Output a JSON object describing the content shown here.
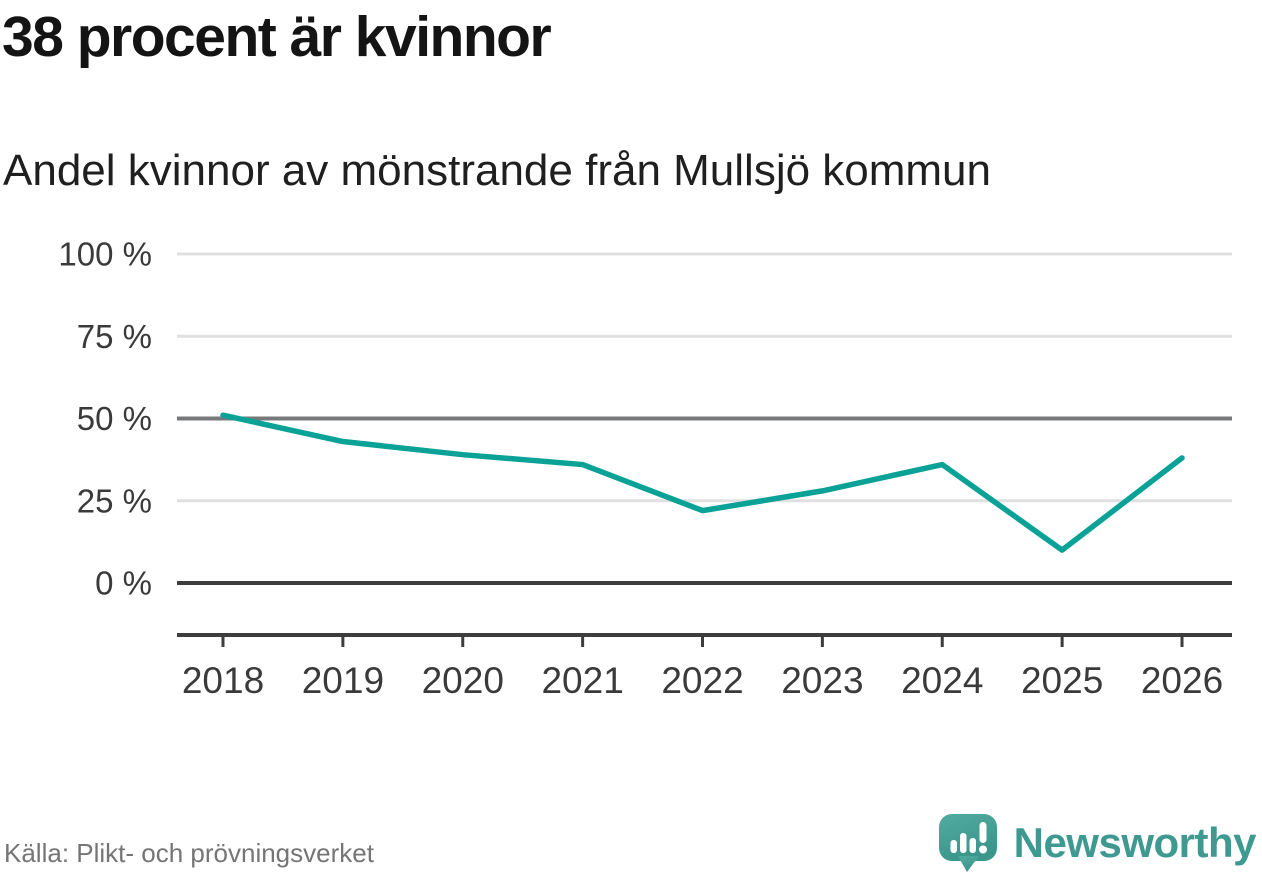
{
  "header": {
    "title": "38 procent är kvinnor",
    "subtitle": "Andel kvinnor av mönstrande från Mullsjö kommun"
  },
  "footer": {
    "source": "Källa: Plikt- och prövningsverket",
    "brand": "Newsworthy"
  },
  "colors": {
    "line": "#0aa296",
    "grid_light": "#e0e0e0",
    "grid_mid": "#77797b",
    "grid_dark": "#3d3d3d",
    "axis_text": "#3a3a3a",
    "brand_teal": "#3e9a90",
    "brand_icon_top": "#52ab9f",
    "brand_icon_bottom": "#3a958b"
  },
  "chart_data": {
    "type": "line",
    "title": "38 procent är kvinnor",
    "subtitle": "Andel kvinnor av mönstrande från Mullsjö kommun",
    "x": [
      2018,
      2019,
      2020,
      2021,
      2022,
      2023,
      2024,
      2025,
      2026
    ],
    "x_tick_labels": [
      "2018",
      "2019",
      "2020",
      "2021",
      "2022",
      "2023",
      "2024",
      "2025",
      "2026"
    ],
    "series": [
      {
        "name": "Andel kvinnor av mönstrande",
        "values": [
          51,
          43,
          39,
          36,
          22,
          28,
          36,
          10,
          38
        ]
      }
    ],
    "unit": "%",
    "ylim": [
      0,
      100
    ],
    "yticks": [
      {
        "value": 100,
        "label": "100 %",
        "style": "light"
      },
      {
        "value": 75,
        "label": "75 %",
        "style": "light"
      },
      {
        "value": 50,
        "label": "50 %",
        "style": "mid"
      },
      {
        "value": 25,
        "label": "25 %",
        "style": "light"
      },
      {
        "value": 0,
        "label": "0 %",
        "style": "dark"
      }
    ],
    "grid": true,
    "legend": false,
    "source": "Källa: Plikt- och prövningsverket"
  }
}
